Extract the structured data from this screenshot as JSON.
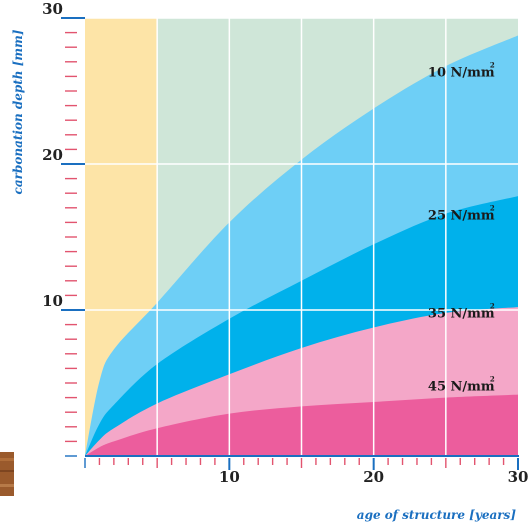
{
  "chart_data": {
    "type": "area",
    "title": "",
    "xlabel": "age of structure [years]",
    "ylabel": "carbonation depth [mm]",
    "xlim": [
      0,
      30
    ],
    "ylim": [
      0,
      30
    ],
    "x_ticks": [
      10,
      20,
      30
    ],
    "y_ticks": [
      10,
      20,
      30
    ],
    "grid": true,
    "series": [
      {
        "name": "10 N/mm²",
        "label_main": "10 N/mm",
        "label_sup": "2",
        "label_x": 27,
        "label_y": 26,
        "color": "#6ecff6",
        "x": [
          0,
          1,
          2,
          5,
          10,
          15,
          20,
          25,
          30
        ],
        "y": [
          0,
          5.1,
          7.3,
          10.5,
          16.0,
          20.3,
          23.8,
          26.7,
          28.8
        ]
      },
      {
        "name": "25 N/mm²",
        "label_main": "25 N/mm",
        "label_sup": "2",
        "label_x": 27,
        "label_y": 16.2,
        "color": "#00b1eb",
        "x": [
          0,
          1,
          2,
          5,
          10,
          15,
          20,
          25,
          30
        ],
        "y": [
          0,
          2.2,
          3.5,
          6.3,
          9.4,
          12.0,
          14.5,
          16.6,
          17.8
        ]
      },
      {
        "name": "35 N/mm²",
        "label_main": "35 N/mm",
        "label_sup": "2",
        "label_x": 27,
        "label_y": 9.5,
        "color": "#f4a7c8",
        "x": [
          0,
          1,
          2,
          5,
          10,
          15,
          20,
          25,
          30
        ],
        "y": [
          0,
          1.1,
          1.9,
          3.6,
          5.6,
          7.4,
          8.8,
          9.8,
          10.2
        ]
      },
      {
        "name": "45 N/mm²",
        "label_main": "45 N/mm",
        "label_sup": "2",
        "label_x": 27,
        "label_y": 4.5,
        "color": "#ec5d9d",
        "x": [
          0,
          1,
          2,
          5,
          10,
          15,
          20,
          25,
          30
        ],
        "y": [
          0,
          0.6,
          1.0,
          1.9,
          2.9,
          3.4,
          3.7,
          4.0,
          4.2
        ]
      }
    ],
    "background_bands": [
      {
        "from": 0,
        "to": 5,
        "color": "#fde4a7"
      },
      {
        "from": 5,
        "to": 10,
        "color": "#cfe6d8"
      },
      {
        "from": 10,
        "to": 15,
        "color": "#fde4a7"
      },
      {
        "from": 15,
        "to": 20,
        "color": "#cfe6d8"
      },
      {
        "from": 20,
        "to": 25,
        "color": "#fde4a7"
      },
      {
        "from": 25,
        "to": 30,
        "color": "#cfe6d8"
      }
    ],
    "upper_region_split_series": "10 N/mm²",
    "upper_region_color": "#cfe6d8",
    "axis_color": "#1a6fc0",
    "tick_color": "#e2546f"
  }
}
